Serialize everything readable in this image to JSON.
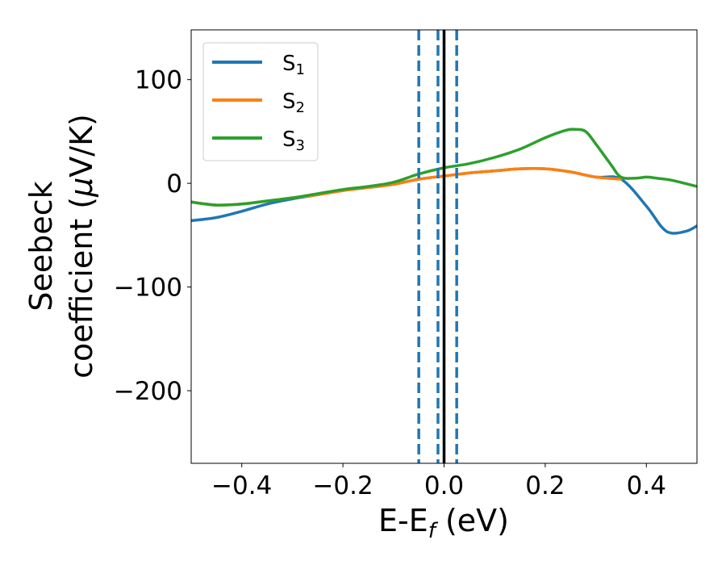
{
  "chart_data": {
    "type": "line",
    "title": "",
    "xlabel": {
      "main": "E-E",
      "sub": "f",
      "suffix": " (eV)"
    },
    "ylabel": {
      "line1": "Seebeck",
      "line2": "coefficient  (",
      "mu": "μ",
      "unit": "V/K)"
    },
    "xlim": [
      -0.5,
      0.5
    ],
    "ylim": [
      -270,
      148
    ],
    "xticks": [
      -0.4,
      -0.2,
      0.0,
      0.2,
      0.4
    ],
    "xtick_labels": [
      "−0.4",
      "−0.2",
      "0.0",
      "0.2",
      "0.4"
    ],
    "yticks": [
      100,
      0,
      -100,
      -200
    ],
    "ytick_labels": [
      "100",
      "0",
      "−100",
      "−200"
    ],
    "grid": false,
    "legend_position": "top-left",
    "series": [
      {
        "name": "S",
        "sub": "1",
        "color": "#1f77b4",
        "x": [
          -0.5,
          -0.45,
          -0.4,
          -0.35,
          -0.3,
          -0.25,
          -0.2,
          -0.15,
          -0.1,
          -0.05,
          0.0,
          0.05,
          0.1,
          0.15,
          0.2,
          0.25,
          0.3,
          0.35,
          0.4,
          0.43,
          0.45,
          0.48,
          0.5
        ],
        "y": [
          -36,
          -33,
          -27,
          -20,
          -15,
          -11,
          -7,
          -4,
          -1,
          4,
          7,
          10,
          12,
          14,
          14,
          11,
          6,
          4,
          -22,
          -42,
          -48,
          -46,
          -41
        ]
      },
      {
        "name": "S",
        "sub": "2",
        "color": "#ff7f0e",
        "x": [
          -0.5,
          -0.45,
          -0.4,
          -0.35,
          -0.3,
          -0.25,
          -0.2,
          -0.15,
          -0.1,
          -0.05,
          0.0,
          0.05,
          0.1,
          0.15,
          0.2,
          0.25,
          0.3,
          0.35
        ],
        "y": [
          -18,
          -21,
          -20,
          -17,
          -14,
          -11,
          -7,
          -4,
          -1,
          4,
          7,
          10,
          12,
          14,
          14,
          11,
          6,
          4
        ]
      },
      {
        "name": "S",
        "sub": "3",
        "color": "#2ca02c",
        "x": [
          -0.5,
          -0.45,
          -0.4,
          -0.35,
          -0.3,
          -0.25,
          -0.2,
          -0.15,
          -0.1,
          -0.05,
          0.0,
          0.05,
          0.1,
          0.15,
          0.2,
          0.24,
          0.26,
          0.28,
          0.3,
          0.33,
          0.35,
          0.38,
          0.4,
          0.42,
          0.45,
          0.5
        ],
        "y": [
          -18,
          -21,
          -20,
          -17,
          -14,
          -10,
          -6,
          -3,
          1,
          9,
          15,
          19,
          25,
          33,
          44,
          51,
          52,
          50,
          38,
          18,
          6,
          5,
          6,
          5,
          3,
          -3
        ]
      }
    ],
    "vlines": [
      {
        "x": -0.05,
        "style": "dashed",
        "color": "#1f77b4"
      },
      {
        "x": -0.012,
        "style": "dashed",
        "color": "#1f77b4"
      },
      {
        "x": 0.025,
        "style": "dashed",
        "color": "#1f77b4"
      },
      {
        "x": 0.0,
        "style": "solid",
        "color": "#000000"
      }
    ]
  }
}
